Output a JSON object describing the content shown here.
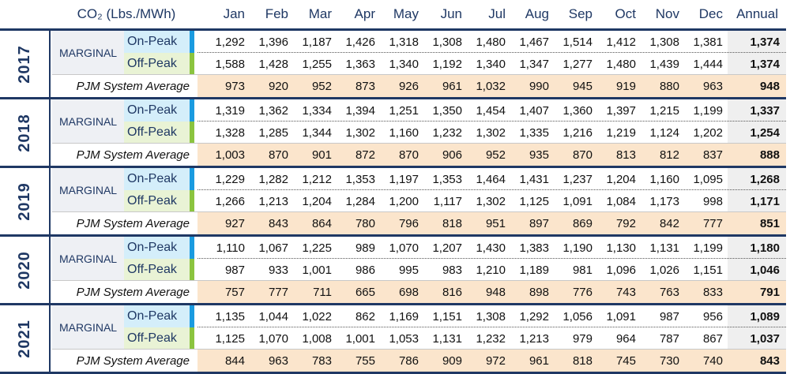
{
  "header": {
    "title": "CO₂ (Lbs./MWh)",
    "columns": [
      "Jan",
      "Feb",
      "Mar",
      "Apr",
      "May",
      "Jun",
      "Jul",
      "Aug",
      "Sep",
      "Oct",
      "Nov",
      "Dec",
      "Annual"
    ]
  },
  "blocks": [
    {
      "year": "2017",
      "group": "MARGINAL",
      "rows": [
        {
          "label": "On-Peak",
          "values": [
            "1,292",
            "1,396",
            "1,187",
            "1,426",
            "1,318",
            "1,308",
            "1,480",
            "1,467",
            "1,514",
            "1,412",
            "1,308",
            "1,381",
            "1,374"
          ]
        },
        {
          "label": "Off-Peak",
          "values": [
            "1,588",
            "1,428",
            "1,255",
            "1,363",
            "1,340",
            "1,192",
            "1,340",
            "1,347",
            "1,277",
            "1,480",
            "1,439",
            "1,444",
            "1,374"
          ]
        },
        {
          "label": "PJM System Average",
          "values": [
            "973",
            "920",
            "952",
            "873",
            "926",
            "961",
            "1,032",
            "990",
            "945",
            "919",
            "880",
            "963",
            "948"
          ]
        }
      ]
    },
    {
      "year": "2018",
      "group": "MARGINAL",
      "rows": [
        {
          "label": "On-Peak",
          "values": [
            "1,319",
            "1,362",
            "1,334",
            "1,394",
            "1,251",
            "1,350",
            "1,454",
            "1,407",
            "1,360",
            "1,397",
            "1,215",
            "1,199",
            "1,337"
          ]
        },
        {
          "label": "Off-Peak",
          "values": [
            "1,328",
            "1,285",
            "1,344",
            "1,302",
            "1,160",
            "1,232",
            "1,302",
            "1,335",
            "1,216",
            "1,219",
            "1,124",
            "1,202",
            "1,254"
          ]
        },
        {
          "label": "PJM System Average",
          "values": [
            "1,003",
            "870",
            "901",
            "872",
            "870",
            "906",
            "952",
            "935",
            "870",
            "813",
            "812",
            "837",
            "888"
          ]
        }
      ]
    },
    {
      "year": "2019",
      "group": "MARGINAL",
      "rows": [
        {
          "label": "On-Peak",
          "values": [
            "1,229",
            "1,282",
            "1,212",
            "1,353",
            "1,197",
            "1,353",
            "1,464",
            "1,431",
            "1,237",
            "1,204",
            "1,160",
            "1,095",
            "1,268"
          ]
        },
        {
          "label": "Off-Peak",
          "values": [
            "1,266",
            "1,213",
            "1,204",
            "1,284",
            "1,200",
            "1,117",
            "1,302",
            "1,125",
            "1,091",
            "1,084",
            "1,173",
            "998",
            "1,171"
          ]
        },
        {
          "label": "PJM System Average",
          "values": [
            "927",
            "843",
            "864",
            "780",
            "796",
            "818",
            "951",
            "897",
            "869",
            "792",
            "842",
            "777",
            "851"
          ]
        }
      ]
    },
    {
      "year": "2020",
      "group": "MARGINAL",
      "rows": [
        {
          "label": "On-Peak",
          "values": [
            "1,110",
            "1,067",
            "1,225",
            "989",
            "1,070",
            "1,207",
            "1,430",
            "1,383",
            "1,190",
            "1,130",
            "1,131",
            "1,199",
            "1,180"
          ]
        },
        {
          "label": "Off-Peak",
          "values": [
            "987",
            "933",
            "1,001",
            "986",
            "995",
            "983",
            "1,210",
            "1,189",
            "981",
            "1,096",
            "1,026",
            "1,151",
            "1,046"
          ]
        },
        {
          "label": "PJM System Average",
          "values": [
            "757",
            "777",
            "711",
            "665",
            "698",
            "816",
            "948",
            "898",
            "776",
            "743",
            "763",
            "833",
            "791"
          ]
        }
      ]
    },
    {
      "year": "2021",
      "group": "MARGINAL",
      "rows": [
        {
          "label": "On-Peak",
          "values": [
            "1,135",
            "1,044",
            "1,022",
            "862",
            "1,169",
            "1,151",
            "1,308",
            "1,292",
            "1,056",
            "1,091",
            "987",
            "956",
            "1,089"
          ]
        },
        {
          "label": "Off-Peak",
          "values": [
            "1,125",
            "1,070",
            "1,008",
            "1,001",
            "1,053",
            "1,131",
            "1,232",
            "1,213",
            "979",
            "964",
            "787",
            "867",
            "1,037"
          ]
        },
        {
          "label": "PJM System Average",
          "values": [
            "844",
            "963",
            "783",
            "755",
            "786",
            "909",
            "972",
            "961",
            "818",
            "745",
            "730",
            "740",
            "843"
          ]
        }
      ]
    }
  ]
}
